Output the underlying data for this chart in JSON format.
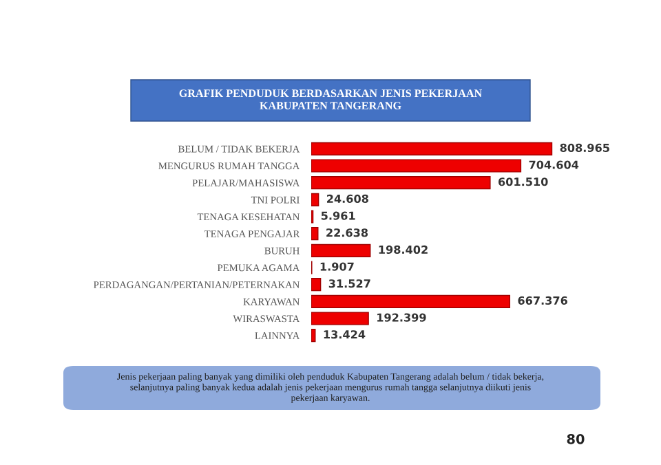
{
  "chart_data": {
    "type": "bar",
    "orientation": "horizontal",
    "title": "GRAFIK PENDUDUK BERDASARKAN JENIS PEKERJAAN\nKABUPATEN TANGERANG",
    "categories": [
      "BELUM / TIDAK BEKERJA",
      "MENGURUS RUMAH TANGGA",
      "PELAJAR/MAHASISWA",
      "TNI POLRI",
      "TENAGA KESEHATAN",
      "TENAGA PENGAJAR",
      "BURUH",
      "PEMUKA AGAMA",
      "PERDAGANGAN/PERTANIAN/PETERNAKAN",
      "KARYAWAN",
      "WIRASWASTA",
      "LAINNYA"
    ],
    "values": [
      808965,
      704604,
      601510,
      24608,
      5961,
      22638,
      198402,
      1907,
      31527,
      667376,
      192399,
      13424
    ],
    "value_labels": [
      "808.965",
      "704.604",
      "601.510",
      "24.608",
      "5.961",
      "22.638",
      "198.402",
      "1.907",
      "31.527",
      "667.376",
      "192.399",
      "13.424"
    ],
    "color": "#ee0000",
    "legend": false,
    "grid": false,
    "annotations": [
      "Jenis pekerjaan paling banyak yang dimiliki oleh penduduk Kabupaten Tangerang adalah belum / tidak bekerja,\nselanjutnya paling banyak kedua adalah jenis pekerjaan mengurus rumah tangga selanjutnya diikuti jenis\npekerjaan karyawan.",
      "80"
    ]
  }
}
